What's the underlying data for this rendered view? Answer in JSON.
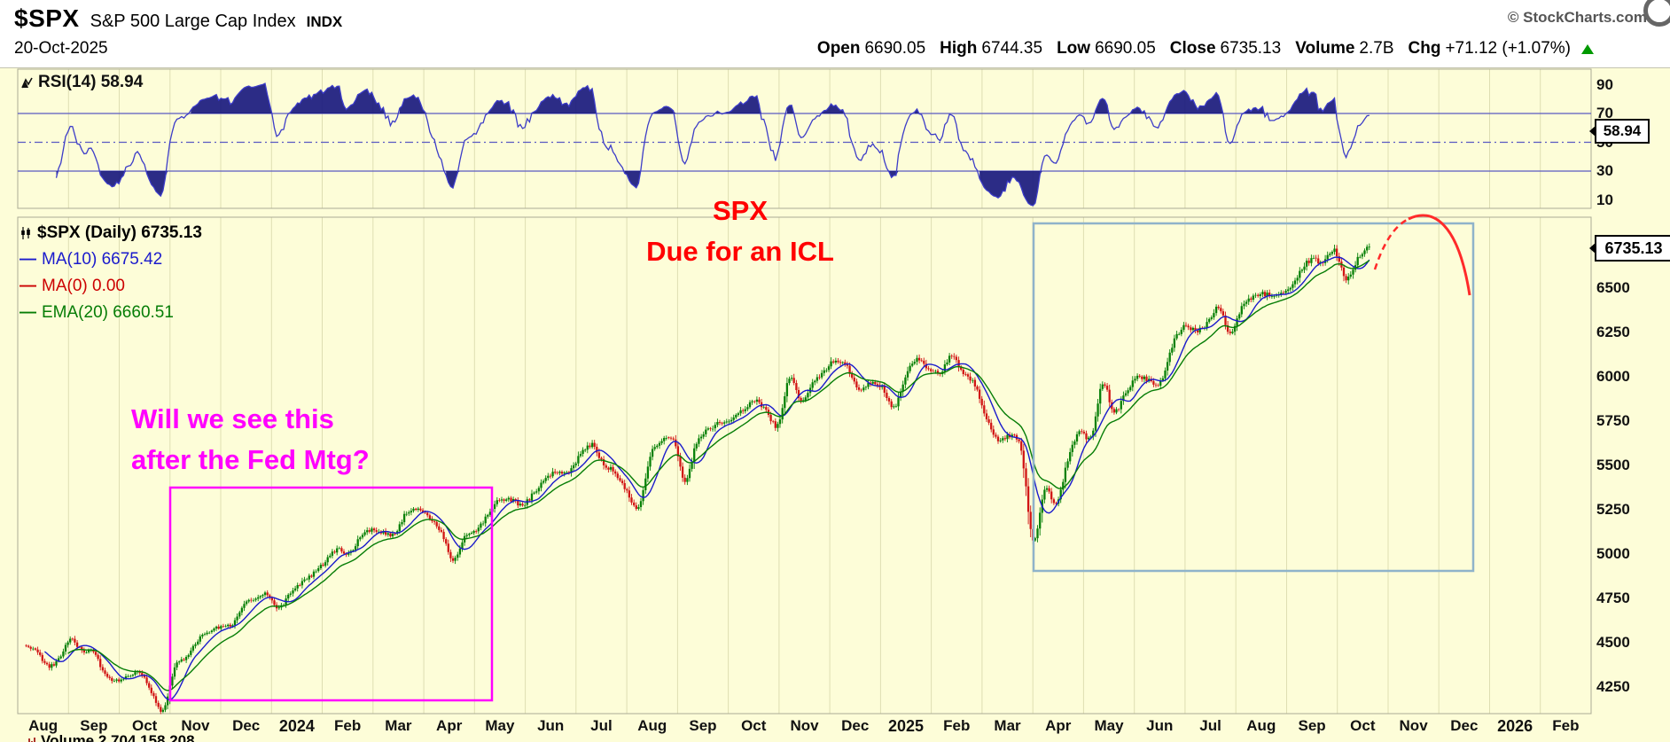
{
  "header": {
    "symbol": "$SPX",
    "index_name": "S&P 500 Large Cap Index",
    "exchange": "INDX",
    "copyright": "© StockCharts.com",
    "date": "20-Oct-2025",
    "quote_fields": [
      {
        "label": "Open",
        "value": "6690.05"
      },
      {
        "label": "High",
        "value": "6744.35"
      },
      {
        "label": "Low",
        "value": "6690.05"
      },
      {
        "label": "Close",
        "value": "6735.13"
      },
      {
        "label": "Volume",
        "value": "2.7B"
      },
      {
        "label": "Chg",
        "value": "+71.12 (+1.07%)"
      }
    ],
    "change_direction": "up",
    "up_color": "#009900"
  },
  "rsi_panel": {
    "label": "RSI(14) 58.94",
    "axis_labels": [
      "90",
      "70",
      "50",
      "30",
      "10"
    ],
    "last_value": "58.94",
    "overbought": 70,
    "oversold": 30,
    "midline": 50,
    "line_color": "#3c3cc8",
    "band_color": "#5a5ac2",
    "fill_color": "#15157d"
  },
  "price_panel": {
    "legend": [
      {
        "text": "$SPX (Daily) 6735.13",
        "color": "#000000",
        "icon": "candlestick"
      },
      {
        "text": "MA(10) 6675.42",
        "color": "#1a1acc",
        "icon": "dash"
      },
      {
        "text": "MA(0) 0.00",
        "color": "#cc0000",
        "icon": "dash"
      },
      {
        "text": "EMA(20) 6660.51",
        "color": "#067d06",
        "icon": "dash"
      }
    ],
    "axis_labels": [
      "6500",
      "6250",
      "6000",
      "5750",
      "5500",
      "5250",
      "5000",
      "4750",
      "4500",
      "4250"
    ],
    "last_price": "6735.13",
    "ma_axis_label": "6675.42",
    "candle_up_color": "#078007",
    "candle_down_color": "#d11414"
  },
  "annotations": {
    "red_lines": [
      "SPX",
      "Due for an ICL"
    ],
    "red_color": "#ff0000",
    "magenta_lines": [
      "Will we see this",
      "after the Fed Mtg?"
    ],
    "magenta_color": "#ff00ff"
  },
  "x_axis": {
    "labels": [
      "Aug",
      "Sep",
      "Oct",
      "Nov",
      "Dec",
      "2024",
      "Feb",
      "Mar",
      "Apr",
      "May",
      "Jun",
      "Jul",
      "Aug",
      "Sep",
      "Oct",
      "Nov",
      "Dec",
      "2025",
      "Feb",
      "Mar",
      "Apr",
      "May",
      "Jun",
      "Jul",
      "Aug",
      "Sep",
      "Oct",
      "Nov",
      "Dec",
      "2026",
      "Feb"
    ]
  },
  "footer": {
    "volume_text": "Volume 2,704,158,208"
  },
  "chart_data": {
    "type": "candlestick",
    "title": "$SPX S&P 500 Large Cap Index (Daily)",
    "x_range": [
      "Aug 2023",
      "Feb 2026"
    ],
    "data_end": "20-Oct-2025",
    "ylim": [
      4100,
      6900
    ],
    "y_ticks": [
      4250,
      4500,
      4750,
      5000,
      5250,
      5500,
      5750,
      6000,
      6250,
      6500
    ],
    "grid": "vertical month gridlines only",
    "legend_position": "top-left",
    "background": "#fdfdd8",
    "series": [
      {
        "name": "SPX close (weekly samples, Aug 2023 - 20 Oct 2025)",
        "values": [
          4478,
          4464,
          4370,
          4406,
          4516,
          4457,
          4450,
          4320,
          4288,
          4309,
          4328,
          4224,
          4117,
          4358,
          4415,
          4514,
          4559,
          4594,
          4604,
          4719,
          4755,
          4770,
          4697,
          4784,
          4840,
          4891,
          4959,
          5027,
          5006,
          5089,
          5137,
          5124,
          5117,
          5234,
          5254,
          5204,
          5123,
          4967,
          5100,
          5128,
          5223,
          5303,
          5305,
          5278,
          5347,
          5432,
          5465,
          5460,
          5567,
          5615,
          5505,
          5459,
          5347,
          5270,
          5554,
          5635,
          5648,
          5408,
          5626,
          5703,
          5738,
          5751,
          5815,
          5865,
          5808,
          5729,
          5996,
          5871,
          5969,
          6032,
          6090,
          6051,
          5931,
          5971,
          5942,
          5827,
          5997,
          6101,
          6041,
          6026,
          6115,
          6013,
          5955,
          5770,
          5639,
          5668,
          5581,
          5074,
          5363,
          5283,
          5525,
          5687,
          5660,
          5958,
          5803,
          5912,
          6000,
          5977,
          5968,
          6173,
          6279,
          6260,
          6297,
          6389,
          6238,
          6389,
          6450,
          6467,
          6460,
          6482,
          6584,
          6664,
          6644,
          6716,
          6552,
          6664,
          6735.13
        ]
      }
    ],
    "overlays": [
      {
        "name": "MA(10)",
        "last_value": 6675.42,
        "color": "#1a1acc"
      },
      {
        "name": "MA(0)",
        "last_value": 0.0,
        "color": "#cc0000"
      },
      {
        "name": "EMA(20)",
        "last_value": 6660.51,
        "color": "#067d06"
      }
    ],
    "last_candle": {
      "date": "20-Oct-2025",
      "open": 6690.05,
      "high": 6744.35,
      "low": 6690.05,
      "close": 6735.13,
      "volume": "2.7B",
      "change": "+71.12 (+1.07%)"
    },
    "sub_panel": {
      "type": "line",
      "name": "RSI(14)",
      "range": [
        0,
        100
      ],
      "ticks": [
        10,
        30,
        50,
        70,
        90
      ],
      "overbought": 70,
      "oversold": 30,
      "last_value": 58.94,
      "note": "RSI(14) computed from the price series; regions beyond 70/30 shaded dark"
    },
    "annotations": [
      {
        "type": "text",
        "text": "SPX / Due for an ICL",
        "color": "#ff0000",
        "position": "top-center"
      },
      {
        "type": "text",
        "text": "Will we see this / after the Fed Mtg?",
        "color": "#ff00ff",
        "position": "mid-left"
      },
      {
        "type": "rect",
        "color": "#ff00ff",
        "span_x": "Nov 2023 - mid May 2024",
        "span_price": [
          4175,
          5350
        ]
      },
      {
        "type": "rect",
        "color": "#8fb3ca",
        "span_x": "Apr 2025 - Jan 2026",
        "span_price": [
          4900,
          6850
        ]
      },
      {
        "type": "curve",
        "color": "#ff2a2a",
        "desc": "dashed rise off last candles then solid curve rolling over downward (projected decline into ICL)"
      }
    ]
  }
}
